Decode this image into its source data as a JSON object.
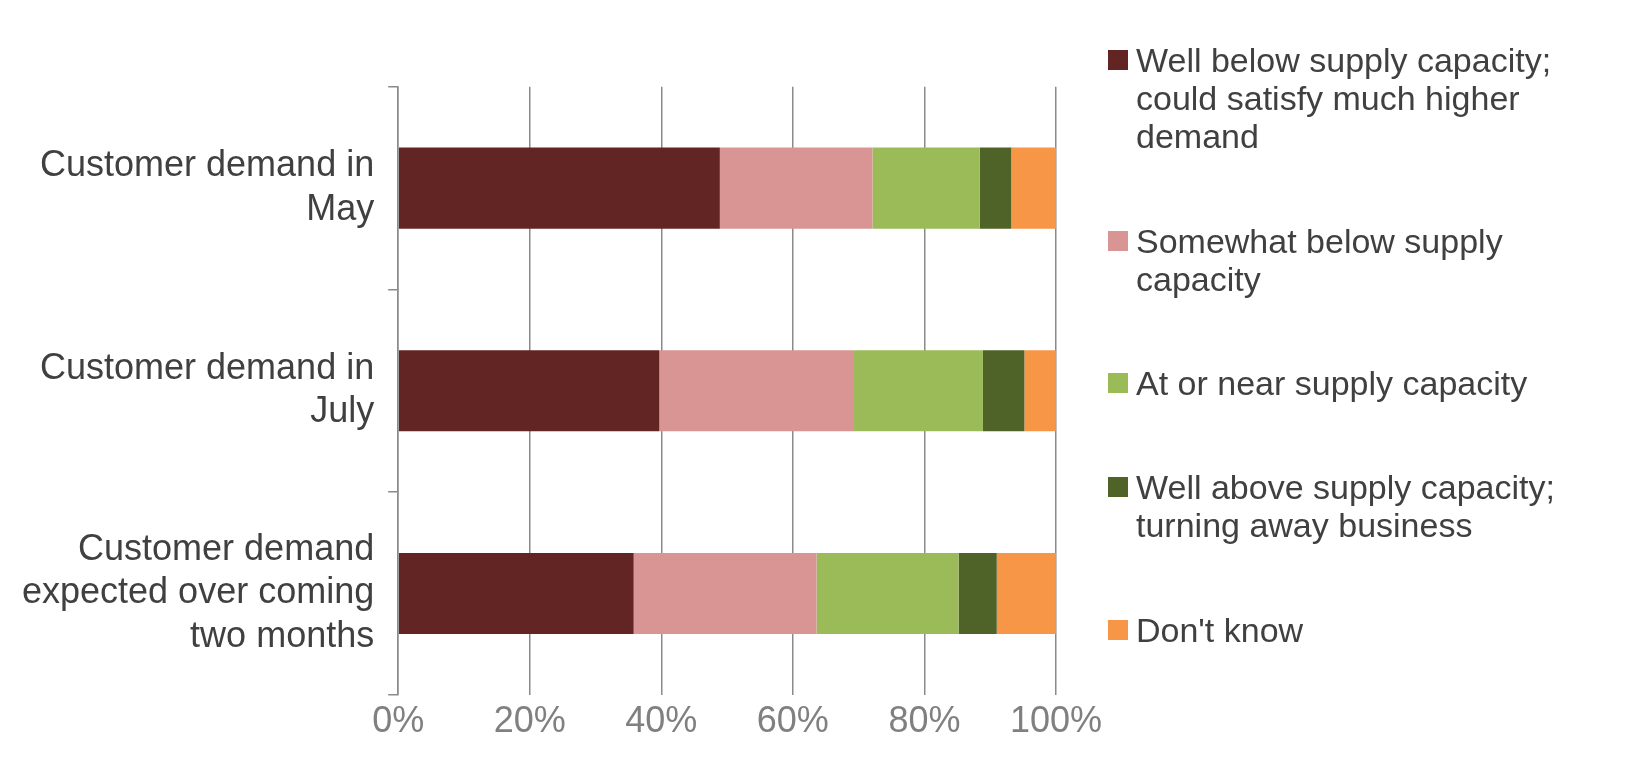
{
  "chart_data": {
    "type": "bar",
    "orientation": "horizontal",
    "stacked": true,
    "categories": [
      "Customer demand in May",
      "Customer demand in July",
      "Customer demand expected over coming two months"
    ],
    "series": [
      {
        "name": "Well below supply capacity; could satisfy much higher demand",
        "color": "#632523",
        "values": [
          48.9,
          39.7,
          35.8
        ]
      },
      {
        "name": "Somewhat below supply capacity",
        "color": "#d99594",
        "values": [
          23.2,
          29.6,
          27.8
        ]
      },
      {
        "name": "At or near supply capacity",
        "color": "#9bbb59",
        "values": [
          16.3,
          19.6,
          21.6
        ]
      },
      {
        "name": "Well above supply capacity; turning away business",
        "color": "#4f6228",
        "values": [
          4.8,
          6.3,
          5.8
        ]
      },
      {
        "name": "Don't know",
        "color": "#f79646",
        "values": [
          6.8,
          4.8,
          9.0
        ]
      }
    ],
    "xlim": [
      0,
      100
    ],
    "xticks": [
      {
        "value": 0,
        "label": "0%"
      },
      {
        "value": 20,
        "label": "20%"
      },
      {
        "value": 40,
        "label": "40%"
      },
      {
        "value": 60,
        "label": "60%"
      },
      {
        "value": 80,
        "label": "80%"
      },
      {
        "value": 100,
        "label": "100%"
      }
    ],
    "grid": "x",
    "legend": "right"
  }
}
